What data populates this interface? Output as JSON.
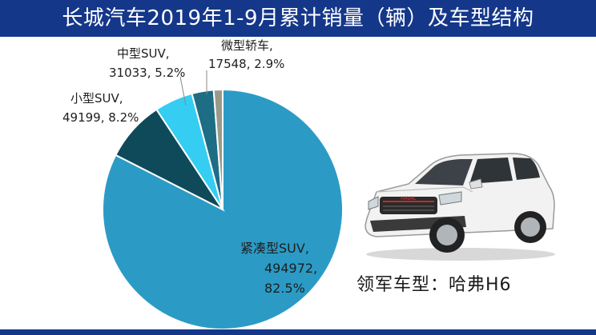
{
  "header": {
    "title": "长城汽车2019年1-9月累计销量（辆）及车型结构"
  },
  "chart_data": {
    "type": "pie",
    "title": "长城汽车2019年1-9月累计销量（辆）及车型结构",
    "slices": [
      {
        "name": "紧凑型SUV",
        "value": 494972,
        "percent_label": "82.5%",
        "color": "#2b9bc6"
      },
      {
        "name": "小型SUV",
        "value": 49199,
        "percent_label": "8.2%",
        "color": "#0e4a5a"
      },
      {
        "name": "中型SUV",
        "value": 31033,
        "percent_label": "5.2%",
        "color": "#35cdf2"
      },
      {
        "name": "微型轿车",
        "value": 17548,
        "percent_label": "2.9%",
        "color": "#1d6d85"
      },
      {
        "name": "",
        "value": 7200,
        "percent_label": "",
        "color": "#9a9a8a"
      }
    ],
    "labels": {
      "compact": {
        "line1": "紧凑型SUV,",
        "line2": "494972,",
        "line3": "82.5%"
      },
      "small": {
        "line1": "小型SUV,",
        "line2": "49199, 8.2%"
      },
      "mid": {
        "line1": "中型SUV,",
        "line2": "31033, 5.2%"
      },
      "mini": {
        "line1": "微型轿车,",
        "line2": "17548, 2.9%"
      }
    }
  },
  "caption": "领军车型：哈弗H6",
  "image": {
    "icon": "suv-car-photo",
    "logo_text": "HAVAL"
  }
}
